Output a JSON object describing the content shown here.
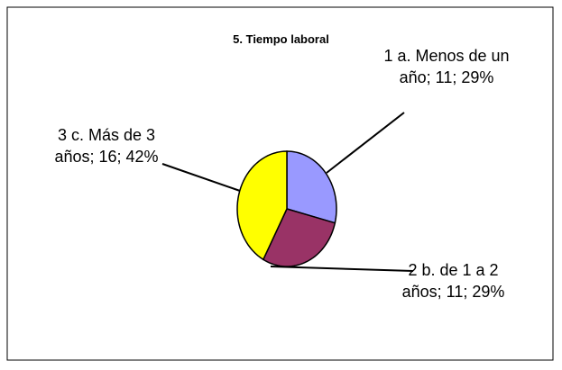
{
  "chart_data": {
    "type": "pie",
    "title": "5. Tiempo laboral",
    "values": [
      11,
      11,
      16
    ],
    "value_labels": [
      "1 a. Menos de un año; 11; 29%",
      "2 b. de 1 a 2 años; 11; 29%",
      "3 c. Más de 3 años; 16; 42%"
    ],
    "colors": [
      "#9999ff",
      "#993366",
      "#ffff00"
    ]
  }
}
